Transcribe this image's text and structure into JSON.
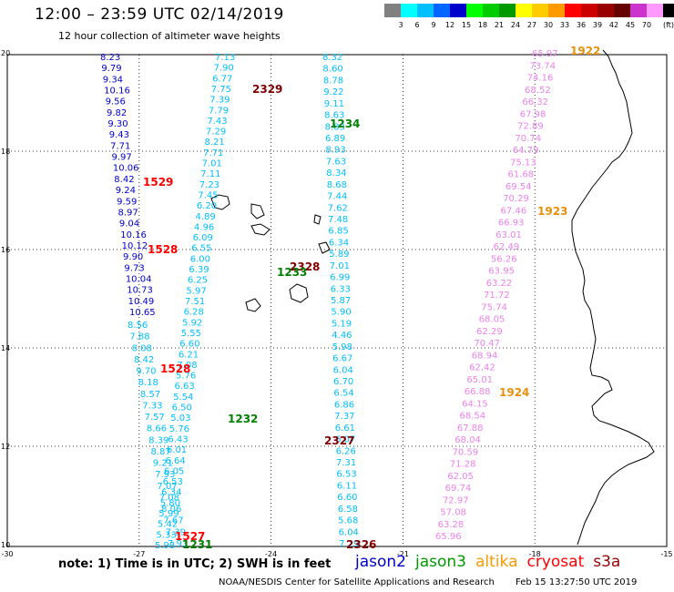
{
  "header": {
    "title": "12:00 – 23:59 UTC 02/14/2019",
    "subtitle": "12 hour collection of altimeter wave heights"
  },
  "swh_scale": {
    "unit": "(ft)",
    "colors": [
      "#808080",
      "#00ffff",
      "#00bfff",
      "#0066ff",
      "#0000cc",
      "#00ff00",
      "#00cc00",
      "#009900",
      "#ffff00",
      "#ffcc00",
      "#ff9900",
      "#ff0000",
      "#cc0000",
      "#990000",
      "#660000",
      "#cc33cc",
      "#ff99ff",
      "#000000"
    ],
    "labels": [
      "3",
      "6",
      "9",
      "12",
      "15",
      "18",
      "21",
      "24",
      "27",
      "30",
      "33",
      "36",
      "39",
      "42",
      "45",
      "70"
    ]
  },
  "map": {
    "x_ticks": [
      "-30",
      "-27",
      "-24",
      "-21",
      "-18",
      "-15"
    ],
    "y_ticks": [
      "20",
      "18",
      "16",
      "14",
      "12",
      "10"
    ],
    "tracks": [
      {
        "satellite": "jason2",
        "color": "#0000cc",
        "values": [
          "8.23",
          "9.79",
          "9.34",
          "10.16",
          "9.56",
          "9.82",
          "9.30",
          "9.43",
          "7.71",
          "9.97",
          "10.06",
          "8.42",
          "9.24",
          "9.59",
          "8.97",
          "9.04",
          "10.16",
          "10.12",
          "9.90",
          "9.73",
          "10.04",
          "10.73",
          "10.49",
          "10.65"
        ]
      },
      {
        "satellite": "jason2",
        "color": "#00bfff",
        "values": [
          "8.56",
          "7.88",
          "8.08",
          "8.42",
          "9.70",
          "8.18",
          "8.57",
          "7.33",
          "7.57",
          "8.66",
          "8.39",
          "8.87",
          "9.21",
          "7.93",
          "7.07",
          "7.08",
          "8.06",
          "7.67",
          "7.39",
          "7.93"
        ]
      },
      {
        "satellite": "jason3",
        "color": "#00bfff",
        "values": [
          "7.13",
          "7.90",
          "6.77",
          "7.75",
          "7.39",
          "7.79",
          "7.43",
          "7.29",
          "8.21",
          "7.71",
          "7.01",
          "7.11",
          "7.23",
          "7.45",
          "6.20",
          "4.89",
          "4.96",
          "6.09",
          "6.55",
          "6.00",
          "6.39",
          "6.25",
          "5.97",
          "7.51",
          "6.28",
          "5.92",
          "5.55",
          "6.60",
          "6.21",
          "7.08",
          "5.76",
          "6.63",
          "5.54",
          "6.50",
          "5.03",
          "5.76",
          "6.43",
          "6.01",
          "6.64",
          "6.05",
          "6.53",
          "6.34",
          "5.80",
          "5.99",
          "5.42",
          "5.33",
          "5.93"
        ]
      },
      {
        "satellite": "jason3",
        "color": "#00bfff",
        "values": [
          "8.32",
          "8.60",
          "8.78",
          "9.22",
          "9.11",
          "8.63",
          "8.83",
          "6.89",
          "8.93",
          "7.63",
          "8.34",
          "8.68",
          "7.44",
          "7.62",
          "7.48",
          "6.85",
          "6.34",
          "5.89",
          "7.01",
          "6.99",
          "6.33",
          "5.87",
          "5.90",
          "5.19",
          "4.46",
          "5.98",
          "6.67",
          "6.04",
          "6.70",
          "6.54",
          "6.86",
          "7.37",
          "6.61",
          "6.07",
          "6.26",
          "7.31",
          "6.53",
          "6.11",
          "6.60",
          "6.58",
          "5.68",
          "6.04",
          "7.29"
        ]
      },
      {
        "satellite": "altika",
        "color": "#ee82ee",
        "values": [
          "65.97",
          "73.74",
          "74.16",
          "68.52",
          "66.32",
          "67.98",
          "72.89",
          "70.74",
          "64.79",
          "75.13",
          "61.68",
          "69.54",
          "70.29",
          "67.46",
          "66.93",
          "63.01",
          "62.49",
          "56.26",
          "63.95",
          "63.22",
          "71.72",
          "75.74",
          "68.05",
          "62.29",
          "70.47",
          "68.94",
          "62.42",
          "65.01",
          "66.88",
          "64.15",
          "68.54",
          "67.88",
          "68.04",
          "70.59",
          "71.28",
          "62.05",
          "69.74",
          "72.97",
          "57.08",
          "63.28",
          "65.96"
        ]
      }
    ],
    "time_labels": [
      {
        "text": "1922",
        "color": "#e8900c"
      },
      {
        "text": "2329",
        "color": "#800000"
      },
      {
        "text": "1234",
        "color": "#008000"
      },
      {
        "text": "1529",
        "color": "#ff0000"
      },
      {
        "text": "1923",
        "color": "#e8900c"
      },
      {
        "text": "1528",
        "color": "#ff0000"
      },
      {
        "text": "2328",
        "color": "#800000"
      },
      {
        "text": "1233",
        "color": "#008000"
      },
      {
        "text": "1528",
        "color": "#ff0000"
      },
      {
        "text": "1924",
        "color": "#e8900c"
      },
      {
        "text": "1232",
        "color": "#008000"
      },
      {
        "text": "2327",
        "color": "#800000"
      },
      {
        "text": "1527",
        "color": "#ff0000"
      },
      {
        "text": "1231",
        "color": "#008000"
      },
      {
        "text": "2326",
        "color": "#800000"
      }
    ]
  },
  "footer": {
    "note": "note:  1) Time is in UTC;  2) SWH is in feet",
    "legend": [
      {
        "name": "jason2",
        "color": "#0000cc"
      },
      {
        "name": "jason3",
        "color": "#009900"
      },
      {
        "name": "altika",
        "color": "#ff9900"
      },
      {
        "name": "cryosat",
        "color": "#ff0000"
      },
      {
        "name": "s3a",
        "color": "#990000"
      }
    ],
    "credit": "NOAA/NESDIS Center for Satellite Applications and Research",
    "generated": "Feb 15 13:27:50 UTC 2019"
  }
}
